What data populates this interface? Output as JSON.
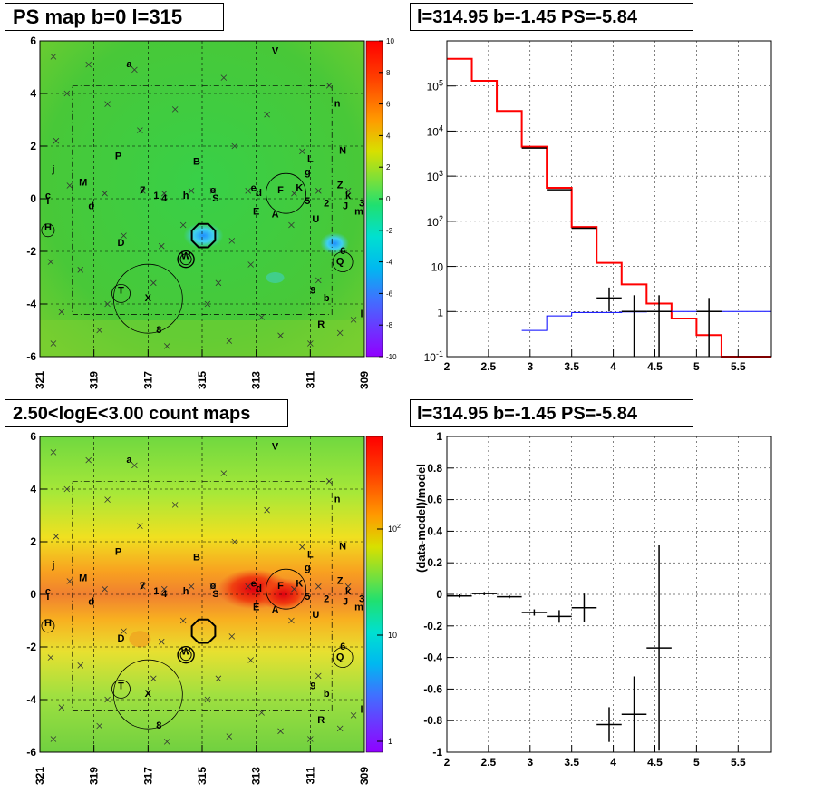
{
  "chart_data": [
    {
      "type": "heatmap",
      "title": "PS map b=0 l=315",
      "x_ticks": [
        "321",
        "319",
        "317",
        "315",
        "313",
        "311",
        "309"
      ],
      "y_ticks": [
        "6",
        "4",
        "2",
        "0",
        "-2",
        "-4",
        "-6"
      ],
      "xlim": [
        321,
        309
      ],
      "ylim": [
        -6,
        6
      ],
      "colorbar": {
        "ticks": [
          "10",
          "8",
          "6",
          "4",
          "2",
          "0",
          "-2",
          "-4",
          "-6",
          "-8",
          "-10"
        ],
        "range": [
          -10,
          10
        ]
      },
      "source_labels": [
        "a",
        "V",
        "n",
        "N",
        "P",
        "B",
        "L",
        "g",
        "j",
        "M",
        "c",
        "I",
        "d",
        "7",
        "1",
        "4",
        "h",
        "o",
        "S",
        "e",
        "d",
        "F",
        "K",
        "5",
        "2",
        "Z",
        "k",
        "J",
        "3",
        "m",
        "E",
        "A",
        "U",
        "H",
        "D",
        "W",
        "6",
        "Q",
        "T",
        "X",
        "9",
        "b",
        "8",
        "R",
        "l"
      ],
      "colors": {
        "bg": "#3fca3f",
        "low": "#4fc8ff",
        "high": "#ffaa00"
      }
    },
    {
      "type": "line",
      "title": "l=314.95 b=-1.45 PS=-5.84",
      "yscale": "log",
      "xlim": [
        2,
        5.9
      ],
      "ylim": [
        0.1,
        1000000
      ],
      "x_ticks": [
        "2",
        "2.5",
        "3",
        "3.5",
        "4",
        "4.5",
        "5",
        "5.5"
      ],
      "y_ticks": [
        "10^-1",
        "1",
        "10",
        "10^2",
        "10^3",
        "10^4",
        "10^5"
      ],
      "series": [
        {
          "color": "#ff0000",
          "type": "step",
          "edges": [
            2.0,
            2.3,
            2.6,
            2.9,
            3.2,
            3.5,
            3.8,
            4.1,
            4.4,
            4.7,
            5.0,
            5.3,
            5.6,
            5.9
          ],
          "values": [
            400000,
            130000,
            28000,
            4500,
            550,
            75,
            12,
            4,
            1.5,
            0.7,
            0.3,
            0.1,
            0.1
          ]
        },
        {
          "color": "#0000ff",
          "type": "step",
          "edges": [
            2.9,
            3.2,
            3.5,
            3.8,
            4.1,
            4.4,
            4.7,
            5.0,
            5.3,
            5.6,
            5.9
          ],
          "values": [
            0.38,
            0.8,
            0.95,
            0.95,
            0.98,
            1.0,
            1.0,
            1.0,
            1.0,
            1.0
          ]
        },
        {
          "color": "#000000",
          "type": "histo",
          "edges": [
            2.9,
            3.2,
            3.5,
            3.8
          ],
          "values": [
            4200,
            500,
            70
          ]
        },
        {
          "color": "#000000",
          "type": "points",
          "points": [
            {
              "x": 3.95,
              "y": 2.0,
              "xerr": 0.15,
              "ylo": 1.0,
              "yhi": 3.4
            },
            {
              "x": 4.25,
              "y": 1.0,
              "xerr": 0.15,
              "ylo": 0.1,
              "yhi": 2.3
            },
            {
              "x": 4.55,
              "y": 1.0,
              "xerr": 0.15,
              "ylo": 0.1,
              "yhi": 2.3
            },
            {
              "x": 5.15,
              "y": 1.0,
              "xerr": 0.15,
              "ylo": 0.1,
              "yhi": 2.0
            }
          ]
        }
      ]
    },
    {
      "type": "heatmap",
      "title": "2.50<logE<3.00 count maps",
      "x_ticks": [
        "321",
        "319",
        "317",
        "315",
        "313",
        "311",
        "309"
      ],
      "y_ticks": [
        "6",
        "4",
        "2",
        "0",
        "-2",
        "-4",
        "-6"
      ],
      "xlim": [
        321,
        309
      ],
      "ylim": [
        -6,
        6
      ],
      "colorbar": {
        "ticks": [
          "10^2",
          "10",
          "1"
        ],
        "scale": "log"
      },
      "colors": {
        "bg": "#8ee63c",
        "band": "#f0a020",
        "hot": "#e02010"
      }
    },
    {
      "type": "scatter",
      "title": "l=314.95 b=-1.45 PS=-5.84",
      "ylabel": "(data-model)/model",
      "xlim": [
        2,
        5.9
      ],
      "ylim": [
        -1,
        1
      ],
      "x_ticks": [
        "2",
        "2.5",
        "3",
        "3.5",
        "4",
        "4.5",
        "5",
        "5.5"
      ],
      "y_ticks": [
        "1",
        "0.8",
        "0.6",
        "0.4",
        "0.2",
        "0",
        "-0.2",
        "-0.4",
        "-0.6",
        "-0.8",
        "-1"
      ],
      "points": [
        {
          "x": 2.15,
          "y": -0.01,
          "xerr": 0.15,
          "yerr": 0.01
        },
        {
          "x": 2.45,
          "y": 0.005,
          "xerr": 0.15,
          "yerr": 0.01
        },
        {
          "x": 2.75,
          "y": -0.015,
          "xerr": 0.15,
          "yerr": 0.01
        },
        {
          "x": 3.05,
          "y": -0.115,
          "xerr": 0.15,
          "yerr": 0.02
        },
        {
          "x": 3.35,
          "y": -0.14,
          "xerr": 0.15,
          "yerr": 0.04
        },
        {
          "x": 3.65,
          "y": -0.085,
          "xerr": 0.15,
          "yerr": 0.09
        },
        {
          "x": 3.95,
          "y": -0.825,
          "xerr": 0.15,
          "yerr": 0.11
        },
        {
          "x": 4.25,
          "y": -0.76,
          "xerr": 0.15,
          "yerr": 0.24
        },
        {
          "x": 4.55,
          "y": -0.34,
          "xerr": 0.15,
          "yerr": 0.65
        }
      ]
    }
  ]
}
